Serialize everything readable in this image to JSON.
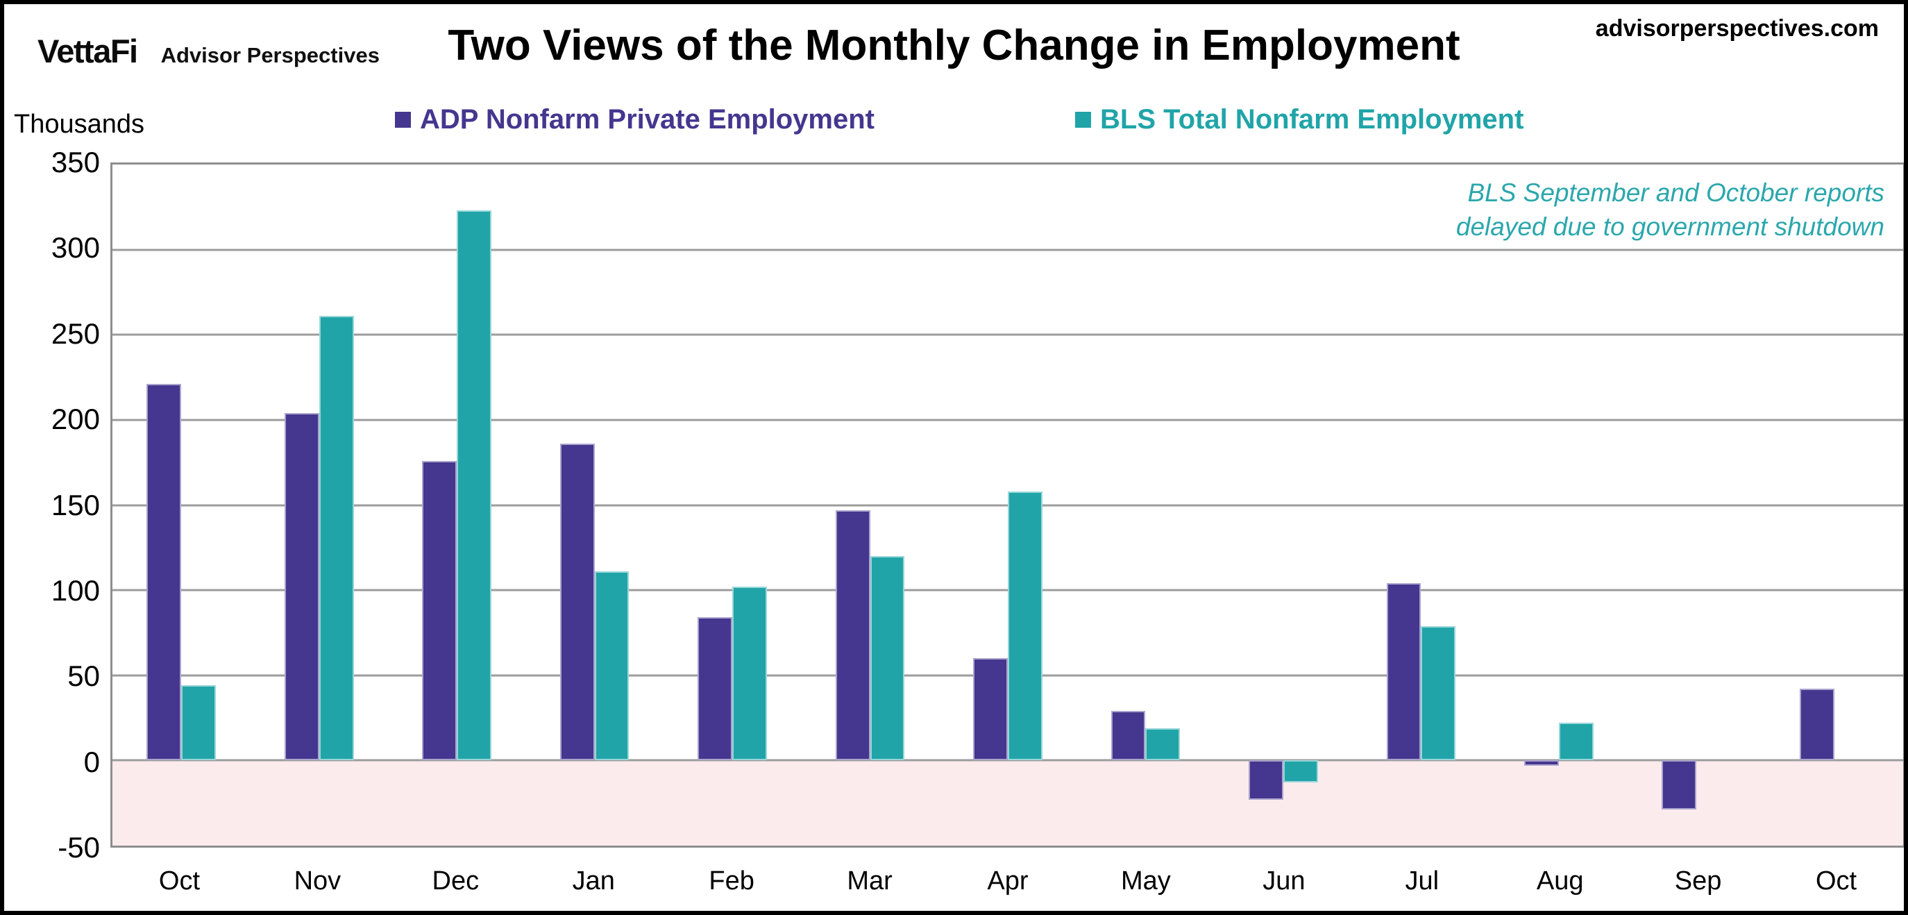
{
  "header": {
    "logo_primary": "VettaFi",
    "logo_secondary": "Advisor Perspectives",
    "title": "Two Views of the Monthly Change in Employment",
    "website": "advisorperspectives.com"
  },
  "chart_data": {
    "type": "bar",
    "title": "Two Views of the Monthly Change in Employment",
    "unit_label": "Thousands",
    "categories": [
      "Oct",
      "Nov",
      "Dec",
      "Jan",
      "Feb",
      "Mar",
      "Apr",
      "May",
      "Jun",
      "Jul",
      "Aug",
      "Sep",
      "Oct"
    ],
    "series": [
      {
        "name": "ADP Nonfarm Private Employment",
        "color": "#45368F",
        "values": [
          221,
          204,
          176,
          186,
          84,
          147,
          60,
          29,
          -23,
          104,
          -3,
          -29,
          42
        ]
      },
      {
        "name": "BLS Total Nonfarm Employment",
        "color": "#20A4A8",
        "values": [
          44,
          261,
          323,
          111,
          102,
          120,
          158,
          19,
          -13,
          79,
          22,
          null,
          null
        ]
      }
    ],
    "y_axis": {
      "min": -50,
      "max": 350,
      "step": 50
    },
    "annotation": {
      "lines": [
        "BLS September and October reports",
        "delayed due to government shutdown"
      ],
      "color": "#2BA7AC"
    },
    "legend_position": "top",
    "grid": true,
    "gridline_color": "#9C9C9C",
    "negative_region_color": "#FCEBED"
  }
}
